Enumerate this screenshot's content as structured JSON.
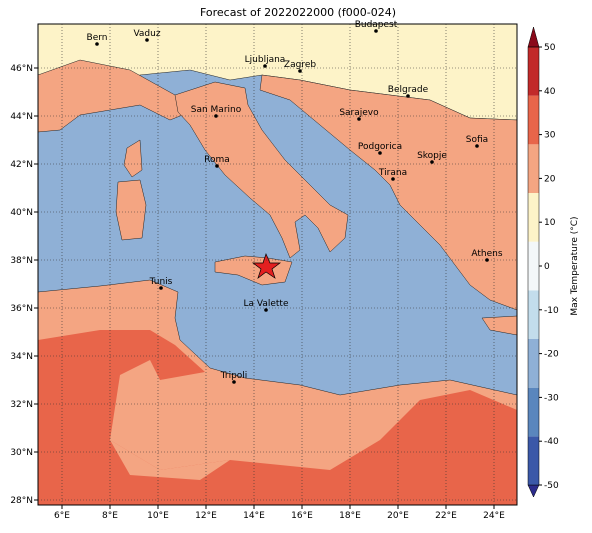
{
  "title": "Forecast of 2022022000 (f000-024)",
  "map": {
    "lon_ticks": [
      "6°E",
      "8°E",
      "10°E",
      "12°E",
      "14°E",
      "16°E",
      "18°E",
      "20°E",
      "22°E",
      "24°E"
    ],
    "lat_ticks": [
      "46°N",
      "44°N",
      "42°N",
      "40°N",
      "38°N",
      "36°N",
      "34°N",
      "32°N",
      "30°N",
      "28°N"
    ],
    "cities": [
      "Bern",
      "Vaduz",
      "Budapest",
      "Ljubljana",
      "Zagreb",
      "Belgrade",
      "Sarajevo",
      "San Marino",
      "Sofia",
      "Podgorica",
      "Skopje",
      "Roma",
      "Tirana",
      "Athens",
      "Tunis",
      "La Valette",
      "Tripoli"
    ]
  },
  "colorbar": {
    "label": "Max Temperature (°C)",
    "lim": [
      -50,
      50
    ],
    "ticks": [
      -50,
      -40,
      -30,
      -20,
      -10,
      0,
      10,
      20,
      30,
      40,
      50
    ],
    "colors": [
      "#2c2c8c",
      "#3b58a8",
      "#5a86bd",
      "#8fb0d6",
      "#c3ddec",
      "#f3f7f9",
      "#fdf3c8",
      "#f4a582",
      "#e8654a",
      "#c22a2a",
      "#8a0a1a"
    ]
  }
}
